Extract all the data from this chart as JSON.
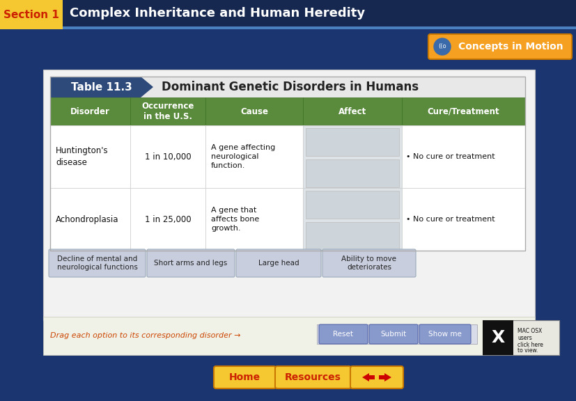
{
  "title_section": "Section 1",
  "title_main": "Complex Inheritance and Human Heredity",
  "bg_color": "#1a3570",
  "table_title": "Table 11.3",
  "table_heading": "Dominant Genetic Disorders in Humans",
  "table_header_bg": "#5a8a3c",
  "table_title_bg": "#2d4a7a",
  "col_headers": [
    "Disorder",
    "Occurrence\nin the U.S.",
    "Cause",
    "Affect",
    "Cure/Treatment"
  ],
  "rows": [
    {
      "disorder": "Huntington's\ndisease",
      "occurrence": "1 in 10,000",
      "cause": "A gene affecting\nneurological\nfunction.",
      "cure": "• No cure or treatment"
    },
    {
      "disorder": "Achondroplasia",
      "occurrence": "1 in 25,000",
      "cause": "A gene that\naffects bone\ngrowth.",
      "cure": "• No cure or treatment"
    }
  ],
  "drag_options": [
    "Decline of mental and\nneurological functions",
    "Short arms and legs",
    "Large head",
    "Ability to move\ndeteriorates"
  ],
  "drag_option_bg": "#c8cede",
  "drag_instruction": "Drag each option to its corresponding disorder →",
  "drag_instruction_color": "#cc4400",
  "concepts_btn_color": "#f5a020",
  "concepts_btn_text": "Concepts in Motion",
  "bottom_btn_color": "#f5c832",
  "affect_cell_bg": "#cdd5da",
  "reset_submit_bg": "#8899cc"
}
